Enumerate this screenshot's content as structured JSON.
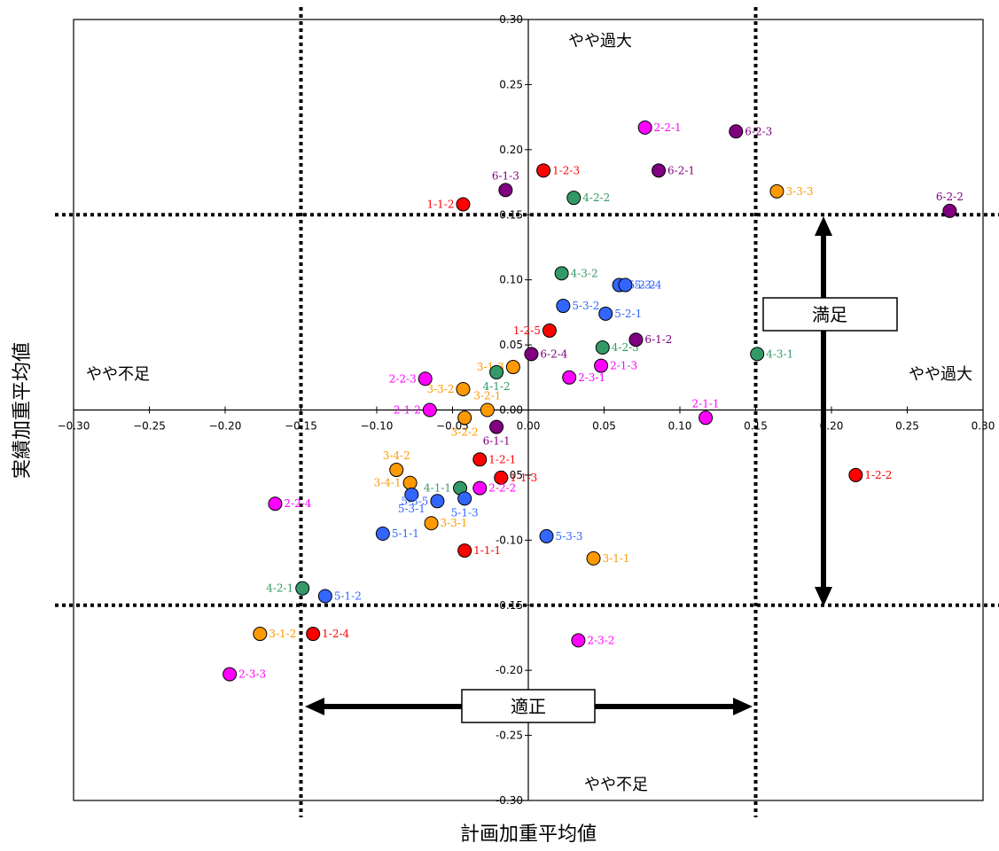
{
  "chart_data": {
    "type": "scatter",
    "xlabel": "計画加重平均値",
    "ylabel": "実績加重平均値",
    "xlim": [
      -0.3,
      0.3
    ],
    "ylim": [
      -0.3,
      0.3
    ],
    "x_ticks": [
      "−0.30",
      "−0.25",
      "−0.20",
      "−0.15",
      "−0.10",
      "−0.05",
      "0.00",
      "0.05",
      "0.10",
      "0.15",
      "0.20",
      "0.25",
      "0.30"
    ],
    "y_ticks": [
      "0.30",
      "0.25",
      "0.20",
      "0.15",
      "0.10",
      "0.05",
      "0.00",
      "-0.05",
      "-0.10",
      "-0.15",
      "-0.20",
      "-0.25",
      "-0.30"
    ],
    "threshold_lines": {
      "x": [
        -0.15,
        0.15
      ],
      "y": [
        -0.15,
        0.15
      ]
    },
    "region_labels": {
      "top": "やや過大",
      "bottom": "やや不足",
      "left": "やや不足",
      "right": "やや過大"
    },
    "box_labels": {
      "satisfied": "満足",
      "appropriate": "適正"
    },
    "colors": {
      "1": "#ff0000",
      "2": "#ff00ff",
      "3": "#ff9900",
      "4": "#339966",
      "5": "#3366ff",
      "6": "#800080"
    },
    "label_colors": {
      "1": "#ff0000",
      "2": "#ff00ff",
      "3": "#ff9900",
      "4": "#339966",
      "5": "#3366ff",
      "6": "#800080"
    },
    "points": [
      {
        "label": "1-1-1",
        "group": "1",
        "x": -0.042,
        "y": -0.108
      },
      {
        "label": "1-1-2",
        "group": "1",
        "x": -0.043,
        "y": 0.158
      },
      {
        "label": "1-1-3",
        "group": "1",
        "x": -0.018,
        "y": -0.052
      },
      {
        "label": "1-2-1",
        "group": "1",
        "x": -0.032,
        "y": -0.038
      },
      {
        "label": "1-2-2",
        "group": "1",
        "x": 0.216,
        "y": -0.05
      },
      {
        "label": "1-2-3",
        "group": "1",
        "x": 0.01,
        "y": 0.184
      },
      {
        "label": "1-2-4",
        "group": "1",
        "x": -0.142,
        "y": -0.172
      },
      {
        "label": "1-2-5",
        "group": "1",
        "x": 0.014,
        "y": 0.061
      },
      {
        "label": "2-1-1",
        "group": "2",
        "x": 0.117,
        "y": -0.006
      },
      {
        "label": "2-1-2",
        "group": "2",
        "x": -0.065,
        "y": 0.0
      },
      {
        "label": "2-1-3",
        "group": "2",
        "x": 0.048,
        "y": 0.034
      },
      {
        "label": "2-2-1",
        "group": "2",
        "x": 0.077,
        "y": 0.217
      },
      {
        "label": "2-2-2",
        "group": "2",
        "x": -0.032,
        "y": -0.06
      },
      {
        "label": "2-2-3",
        "group": "2",
        "x": -0.068,
        "y": 0.024
      },
      {
        "label": "2-2-4",
        "group": "2",
        "x": -0.167,
        "y": -0.072
      },
      {
        "label": "2-3-1",
        "group": "2",
        "x": 0.027,
        "y": 0.025
      },
      {
        "label": "2-3-2",
        "group": "2",
        "x": 0.033,
        "y": -0.177
      },
      {
        "label": "2-3-3",
        "group": "2",
        "x": -0.197,
        "y": -0.203
      },
      {
        "label": "3-1-1",
        "group": "3",
        "x": 0.043,
        "y": -0.114
      },
      {
        "label": "3-1-2",
        "group": "3",
        "x": -0.177,
        "y": -0.172
      },
      {
        "label": "3-1-3",
        "group": "3",
        "x": -0.01,
        "y": 0.033
      },
      {
        "label": "3-2-1",
        "group": "3",
        "x": -0.027,
        "y": 0.0
      },
      {
        "label": "3-2-2",
        "group": "3",
        "x": -0.042,
        "y": -0.006
      },
      {
        "label": "3-3-1",
        "group": "3",
        "x": -0.064,
        "y": -0.087
      },
      {
        "label": "3-3-2",
        "group": "3",
        "x": -0.043,
        "y": 0.016
      },
      {
        "label": "3-3-3",
        "group": "3",
        "x": 0.164,
        "y": 0.168
      },
      {
        "label": "3-4-1",
        "group": "3",
        "x": -0.078,
        "y": -0.056
      },
      {
        "label": "3-4-2",
        "group": "3",
        "x": -0.087,
        "y": -0.046
      },
      {
        "label": "4-1-1",
        "group": "4",
        "x": -0.045,
        "y": -0.06
      },
      {
        "label": "4-1-2",
        "group": "4",
        "x": -0.021,
        "y": 0.029
      },
      {
        "label": "4-2-1",
        "group": "4",
        "x": -0.149,
        "y": -0.137
      },
      {
        "label": "4-2-2",
        "group": "4",
        "x": 0.03,
        "y": 0.163
      },
      {
        "label": "4-2-3",
        "group": "4",
        "x": 0.049,
        "y": 0.048
      },
      {
        "label": "4-3-1",
        "group": "4",
        "x": 0.151,
        "y": 0.043
      },
      {
        "label": "4-3-2",
        "group": "4",
        "x": 0.022,
        "y": 0.105
      },
      {
        "label": "5-1-1",
        "group": "5",
        "x": -0.096,
        "y": -0.095
      },
      {
        "label": "5-1-2",
        "group": "5",
        "x": -0.134,
        "y": -0.143
      },
      {
        "label": "5-1-3",
        "group": "5",
        "x": -0.042,
        "y": -0.068
      },
      {
        "label": "5-2-1",
        "group": "5",
        "x": 0.051,
        "y": 0.074
      },
      {
        "label": "5-2-2",
        "group": "5",
        "x": 0.06,
        "y": 0.096
      },
      {
        "label": "5-3-1",
        "group": "5",
        "x": -0.077,
        "y": -0.065
      },
      {
        "label": "5-3-2",
        "group": "5",
        "x": 0.023,
        "y": 0.08
      },
      {
        "label": "5-3-3",
        "group": "5",
        "x": 0.012,
        "y": -0.097
      },
      {
        "label": "5-3-4",
        "group": "5",
        "x": 0.064,
        "y": 0.096
      },
      {
        "label": "5-3-5",
        "group": "5",
        "x": -0.06,
        "y": -0.07
      },
      {
        "label": "6-1-1",
        "group": "6",
        "x": -0.021,
        "y": -0.013
      },
      {
        "label": "6-1-2",
        "group": "6",
        "x": 0.071,
        "y": 0.054
      },
      {
        "label": "6-1-3",
        "group": "6",
        "x": -0.015,
        "y": 0.169
      },
      {
        "label": "6-2-1",
        "group": "6",
        "x": 0.086,
        "y": 0.184
      },
      {
        "label": "6-2-2",
        "group": "6",
        "x": 0.278,
        "y": 0.153
      },
      {
        "label": "6-2-3",
        "group": "6",
        "x": 0.137,
        "y": 0.214
      },
      {
        "label": "6-2-4",
        "group": "6",
        "x": 0.002,
        "y": 0.043
      }
    ]
  }
}
